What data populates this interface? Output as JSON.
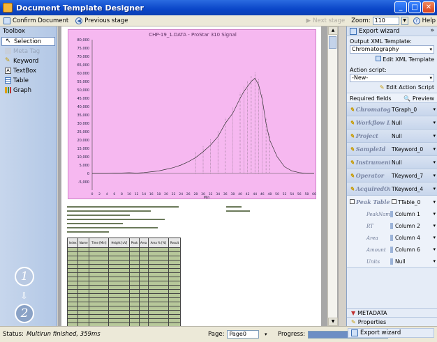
{
  "window": {
    "title": "Document Template Designer"
  },
  "toolbar": {
    "confirm_label": "Confirm Document",
    "previous_label": "Previous stage",
    "next_label": "Next stage",
    "zoom_label": "Zoom:",
    "zoom_value": "110",
    "help_label": "Help"
  },
  "toolbox": {
    "header": "Toolbox",
    "items": [
      {
        "label": "Selection"
      },
      {
        "label": "Meta Tag"
      },
      {
        "label": "Keyword"
      },
      {
        "label": "TextBox"
      },
      {
        "label": "Table"
      },
      {
        "label": "Graph"
      }
    ],
    "steps": [
      "1",
      "2"
    ]
  },
  "document": {
    "chart_title": "CHP-19_1.DATA - ProStar 310 Signal",
    "table_headers": [
      "Index",
      "Name",
      "Time [Min]",
      "Height [uV]",
      "Peak",
      "Area",
      "Area % [%]",
      "Result"
    ]
  },
  "chart_data": {
    "type": "line",
    "title": "CHP-19_1.DATA - ProStar 310 Signal",
    "xlabel": "Min",
    "ylabel": "",
    "xlim": [
      0,
      60
    ],
    "ylim": [
      -10000,
      80000
    ],
    "x_ticks": [
      "0",
      "2",
      "4",
      "6",
      "8",
      "10",
      "12",
      "14",
      "16",
      "18",
      "20",
      "22",
      "24",
      "26",
      "28",
      "30",
      "32",
      "34",
      "36",
      "38",
      "40",
      "42",
      "44",
      "46",
      "48",
      "50",
      "52",
      "54",
      "56",
      "58",
      "60"
    ],
    "y_ticks": [
      "80,000",
      "75,000",
      "70,000",
      "65,000",
      "60,000",
      "55,000",
      "50,000",
      "45,000",
      "40,000",
      "35,000",
      "30,000",
      "25,000",
      "20,000",
      "15,000",
      "10,000",
      "5,000",
      "0",
      "-5,000"
    ],
    "x": [
      0,
      2,
      4,
      6,
      8,
      10,
      12,
      14,
      16,
      18,
      20,
      22,
      24,
      26,
      28,
      30,
      32,
      34,
      36,
      38,
      40,
      41,
      42,
      43,
      44,
      45,
      46,
      47,
      48,
      50,
      52,
      54,
      56,
      58,
      60
    ],
    "y": [
      0,
      0,
      0,
      200,
      300,
      400,
      200,
      500,
      1000,
      1500,
      2500,
      3500,
      5000,
      7000,
      9500,
      13000,
      17000,
      22000,
      30000,
      36000,
      45000,
      49000,
      52000,
      55000,
      57000,
      53000,
      44000,
      30000,
      20000,
      10000,
      4000,
      1500,
      500,
      0,
      0
    ],
    "grid": false
  },
  "panel": {
    "header": "Export wizard",
    "output_label": "Output XML Template:",
    "output_value": "Chromatography",
    "edit_xml": "Edit XML Template",
    "action_label": "Action script:",
    "action_value": "-New-",
    "edit_action": "Edit Action Script",
    "tab_required": "Required fields",
    "tab_preview": "Preview",
    "fields": [
      {
        "name": "Chromatogram",
        "value": "TGraph_0"
      },
      {
        "name": "Workflow ID",
        "value": "Null"
      },
      {
        "name": "Project",
        "value": "Null"
      },
      {
        "name": "SampleId",
        "value": "TKeyword_0"
      },
      {
        "name": "Instrument",
        "value": "Null"
      },
      {
        "name": "Operator",
        "value": "TKeyword_7"
      },
      {
        "name": "AcquiredOn",
        "value": "TKeyword_4"
      }
    ],
    "peak_table": {
      "name": "Peak Table",
      "value": "TTable_0",
      "rows": [
        {
          "name": "PeakName",
          "value": "Column 1"
        },
        {
          "name": "RT",
          "value": "Column 2"
        },
        {
          "name": "Area",
          "value": "Column 4"
        },
        {
          "name": "Amount",
          "value": "Column 6"
        },
        {
          "name": "Units",
          "value": "Null"
        }
      ]
    },
    "metadata_label": "METADATA",
    "properties_label": "Properties",
    "export_bottom": "Export wizard"
  },
  "status": {
    "label": "Status:",
    "text": "Multirun finished, 359ms",
    "page_label": "Page:",
    "page_value": "Page0",
    "progress_label": "Progress:"
  },
  "colors": {
    "titlebar": "#0a46c8",
    "chart_bg": "#f6b8f0",
    "toolbox_bg": "#b3c8e6"
  }
}
